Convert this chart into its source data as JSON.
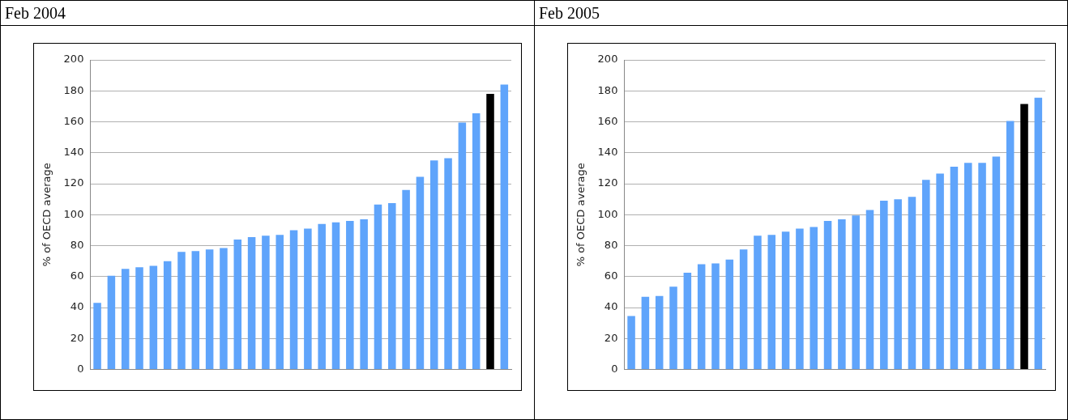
{
  "chart_data": [
    {
      "type": "bar",
      "title": "Feb 2004",
      "ylabel": "% of OECD average",
      "categories": [
        null,
        null,
        null,
        null,
        null,
        null,
        null,
        null,
        null,
        null,
        null,
        null,
        null,
        null,
        null,
        null,
        null,
        null,
        null,
        null,
        null,
        null,
        null,
        null,
        null,
        null,
        null,
        null,
        null,
        null
      ],
      "values": [
        43,
        60.5,
        65,
        66,
        67,
        70,
        76,
        76.5,
        77.5,
        78.5,
        84,
        85.5,
        86.5,
        87,
        90,
        91,
        94,
        95,
        96,
        97,
        106.5,
        107.5,
        116,
        124.5,
        135,
        136.5,
        159.5,
        165.5,
        178,
        184
      ],
      "colors": [
        "#5fa4fb",
        "#5fa4fb",
        "#5fa4fb",
        "#5fa4fb",
        "#5fa4fb",
        "#5fa4fb",
        "#5fa4fb",
        "#5fa4fb",
        "#5fa4fb",
        "#5fa4fb",
        "#5fa4fb",
        "#5fa4fb",
        "#5fa4fb",
        "#5fa4fb",
        "#5fa4fb",
        "#5fa4fb",
        "#5fa4fb",
        "#5fa4fb",
        "#5fa4fb",
        "#5fa4fb",
        "#5fa4fb",
        "#5fa4fb",
        "#5fa4fb",
        "#5fa4fb",
        "#5fa4fb",
        "#5fa4fb",
        "#5fa4fb",
        "#5fa4fb",
        "#000000",
        "#5fa4fb"
      ],
      "ylim": [
        0,
        200
      ],
      "yticks": [
        0,
        20,
        40,
        60,
        80,
        100,
        120,
        140,
        160,
        180,
        200
      ],
      "grid": "y"
    },
    {
      "type": "bar",
      "title": "Feb 2005",
      "ylabel": "% of OECD average",
      "categories": [
        null,
        null,
        null,
        null,
        null,
        null,
        null,
        null,
        null,
        null,
        null,
        null,
        null,
        null,
        null,
        null,
        null,
        null,
        null,
        null,
        null,
        null,
        null,
        null,
        null,
        null,
        null,
        null,
        null,
        null
      ],
      "values": [
        34.5,
        47,
        47.5,
        53.5,
        62.5,
        68,
        68.5,
        71,
        77.5,
        86.5,
        87,
        89,
        91,
        92,
        96,
        97,
        99.5,
        103,
        109,
        110,
        111.5,
        122.5,
        126.5,
        131,
        133.5,
        133.5,
        137.5,
        160.5,
        171.5,
        175.5
      ],
      "colors": [
        "#5fa4fb",
        "#5fa4fb",
        "#5fa4fb",
        "#5fa4fb",
        "#5fa4fb",
        "#5fa4fb",
        "#5fa4fb",
        "#5fa4fb",
        "#5fa4fb",
        "#5fa4fb",
        "#5fa4fb",
        "#5fa4fb",
        "#5fa4fb",
        "#5fa4fb",
        "#5fa4fb",
        "#5fa4fb",
        "#5fa4fb",
        "#5fa4fb",
        "#5fa4fb",
        "#5fa4fb",
        "#5fa4fb",
        "#5fa4fb",
        "#5fa4fb",
        "#5fa4fb",
        "#5fa4fb",
        "#5fa4fb",
        "#5fa4fb",
        "#5fa4fb",
        "#000000",
        "#5fa4fb"
      ],
      "ylim": [
        0,
        200
      ],
      "yticks": [
        0,
        20,
        40,
        60,
        80,
        100,
        120,
        140,
        160,
        180,
        200
      ],
      "grid": "y"
    }
  ]
}
